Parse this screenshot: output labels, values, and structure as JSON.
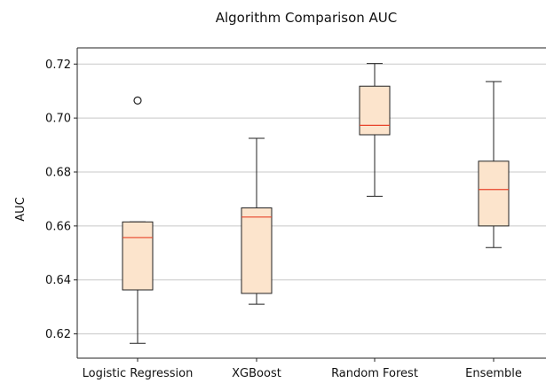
{
  "chart_data": {
    "type": "box",
    "title": "Algorithm Comparison AUC",
    "xlabel": "",
    "ylabel": "AUC",
    "ylim": [
      0.611,
      0.726
    ],
    "yticks": [
      "0.62",
      "0.64",
      "0.66",
      "0.68",
      "0.70",
      "0.72"
    ],
    "ytick_values": [
      0.62,
      0.64,
      0.66,
      0.68,
      0.7,
      0.72
    ],
    "grid": "horizontal",
    "categories": [
      "Logistic Regression",
      "XGBoost",
      "Random Forest",
      "Ensemble"
    ],
    "boxes": [
      {
        "whisker_low": 0.6165,
        "q1": 0.6363,
        "median": 0.6557,
        "q3": 0.6615,
        "whisker_high": 0.6615,
        "outliers": [
          0.7065
        ]
      },
      {
        "whisker_low": 0.631,
        "q1": 0.635,
        "median": 0.6633,
        "q3": 0.6667,
        "whisker_high": 0.6925,
        "outliers": []
      },
      {
        "whisker_low": 0.671,
        "q1": 0.6938,
        "median": 0.6973,
        "q3": 0.7118,
        "whisker_high": 0.7202,
        "outliers": []
      },
      {
        "whisker_low": 0.652,
        "q1": 0.66,
        "median": 0.6735,
        "q3": 0.684,
        "whisker_high": 0.7135,
        "outliers": []
      }
    ],
    "colors": {
      "box_fill": "#fce4cc",
      "box_edge": "#222222",
      "median": "#e8432a",
      "grid": "#c8c8c8",
      "axis": "#222222"
    }
  }
}
